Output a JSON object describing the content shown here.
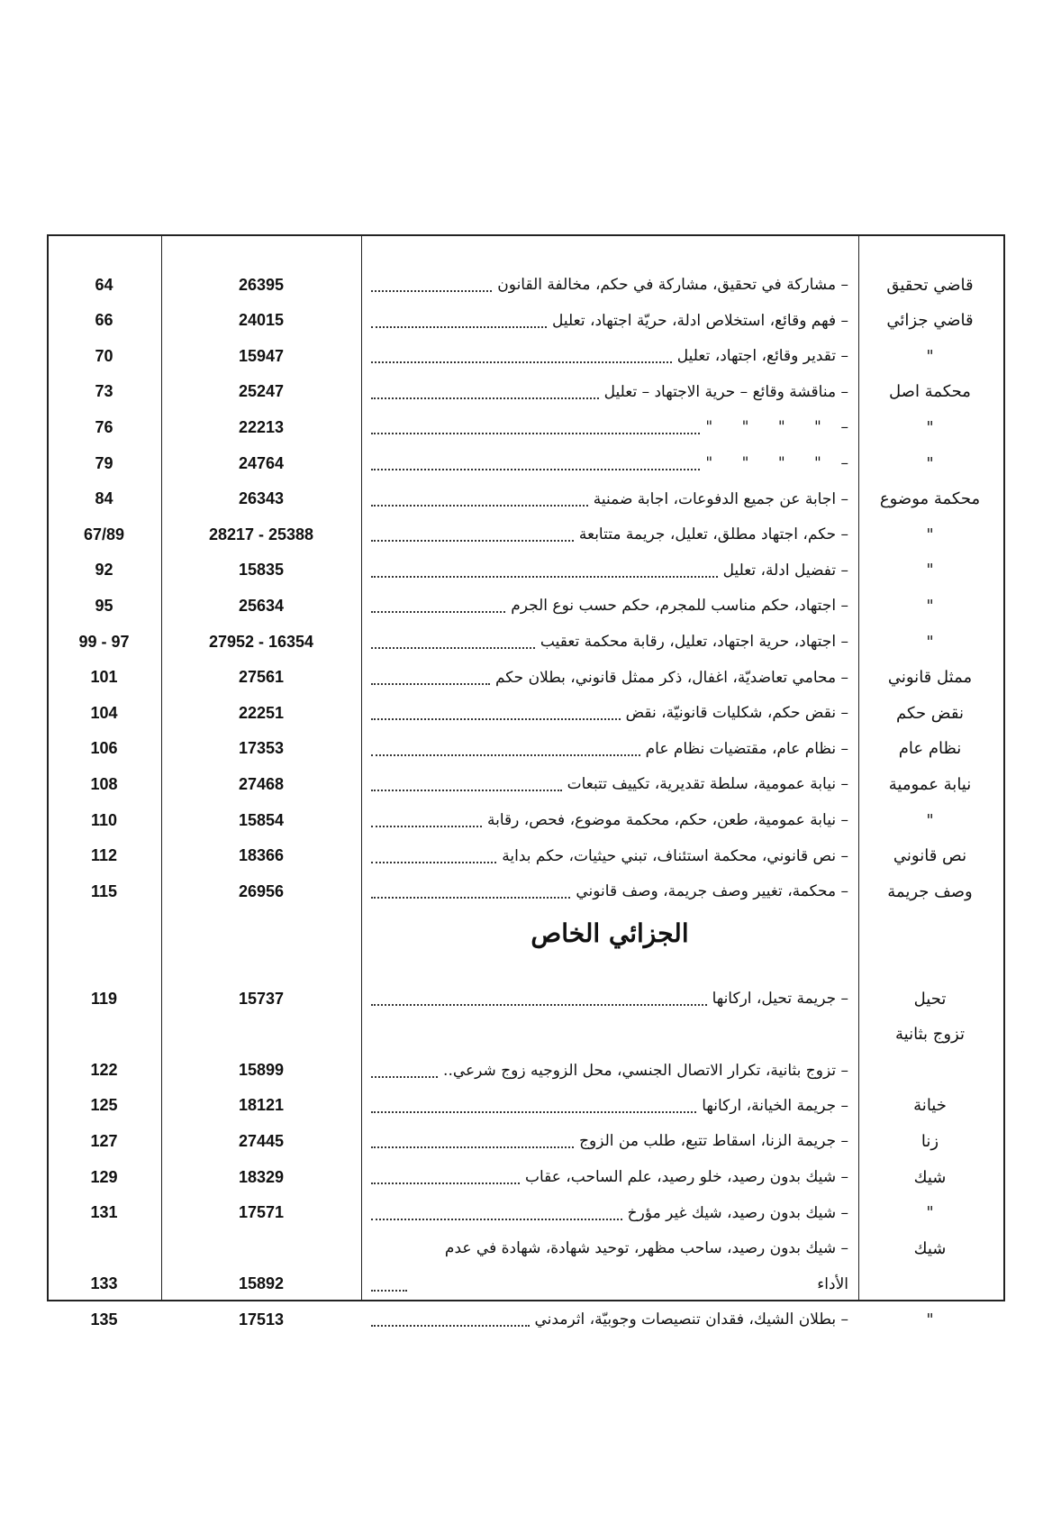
{
  "table": {
    "rows_a": [
      {
        "keyword": "قاضي تحقيق",
        "description": "– مشاركة في تحقيق، مشاركة في حكم، مخالفة القانون",
        "number": 26395,
        "page": 64
      },
      {
        "keyword": "قاضي جزائي",
        "description": "– فهم وقائع، استخلاص ادلة، حريّة اجتهاد، تعليل",
        "number": 24015,
        "page": 66
      },
      {
        "keyword": "\"",
        "description": "– تقدير وقائع، اجتهاد، تعليل",
        "number": 15947,
        "page": 70
      },
      {
        "keyword": "محكمة اصل",
        "description": "– مناقشة وقائع – حرية الاجتهاد – تعليل",
        "number": 25247,
        "page": 73
      },
      {
        "keyword": "\"",
        "description": "–    \"      \"      \"      \"",
        "number": 22213,
        "page": 76
      },
      {
        "keyword": "\"",
        "description": "–    \"      \"      \"      \"",
        "number": 24764,
        "page": 79
      },
      {
        "keyword": "محكمة موضوع",
        "description": "– اجابة عن جميع الدفوعات، اجابة ضمنية",
        "number": 26343,
        "page": 84
      },
      {
        "keyword": "\"",
        "description": "– حكم، اجتهاد مطلق، تعليل، جريمة متتابعة",
        "number": "28217 - 25388",
        "page": "67/89"
      },
      {
        "keyword": "\"",
        "description": "– تفضيل ادلة، تعليل",
        "number": 15835,
        "page": 92
      },
      {
        "keyword": "\"",
        "description": "– اجتهاد، حكم مناسب للمجرم، حكم حسب نوع الجرم",
        "number": 25634,
        "page": 95
      },
      {
        "keyword": "\"",
        "description": "– اجتهاد، حرية اجتهاد، تعليل، رقابة محكمة تعقيب",
        "number": "27952 - 16354",
        "page": "99 - 97"
      },
      {
        "keyword": "ممثل قانوني",
        "description": "– محامي تعاضديّة، اغفال، ذكر ممثل قانوني، بطلان حكم",
        "number": 27561,
        "page": 101
      },
      {
        "keyword": "نقض حكم",
        "description": "– نقض حكم، شكليات قانونيّة، نقض",
        "number": 22251,
        "page": 104
      },
      {
        "keyword": "نظام عام",
        "description": "– نظام عام، مقتضيات نظام عام",
        "number": 17353,
        "page": 106
      },
      {
        "keyword": "نيابة عمومية",
        "description": "– نيابة عمومية، سلطة تقديرية، تكييف تتبعات",
        "number": 27468,
        "page": 108
      },
      {
        "keyword": "\"",
        "description": "– نيابة عمومية، طعن، حكم، محكمة موضوع، فحص، رقابة",
        "number": 15854,
        "page": 110
      },
      {
        "keyword": "نص قانوني",
        "description": "– نص قانوني، محكمة استئناف، تبني حيثيات، حكم بداية",
        "number": 18366,
        "page": 112
      },
      {
        "keyword": "وصف جريمة",
        "description": "– محكمة، تغيير وصف جريمة، وصف قانوني",
        "number": 26956,
        "page": 115
      }
    ],
    "section_title": "الجزائي الخاص",
    "rows_b": [
      {
        "keyword": "تحيل",
        "description": "– جريمة تحيل، اركانها",
        "number": 15737,
        "page": 119
      },
      {
        "keyword": "تزوج بثانية",
        "description": "– تزوج بثانية، تكرار الاتصال الجنسي، محل الزوجيه زوج شرعي..",
        "number": 15899,
        "page": 122
      },
      {
        "keyword": "خيانة",
        "description": "– جريمة الخيانة، اركانها",
        "number": 18121,
        "page": 125
      },
      {
        "keyword": "زنا",
        "description": "– جريمة الزنا، اسقاط تتبع، طلب من الزوج",
        "number": 27445,
        "page": 127
      },
      {
        "keyword": "شيك",
        "description": "– شيك بدون رصيد، خلو رصيد، علم الساحب، عقاب",
        "number": 18329,
        "page": 129
      },
      {
        "keyword": "\"",
        "description": "– شيك بدون رصيد، شيك غير مؤرخ",
        "number": 17571,
        "page": 131
      },
      {
        "keyword": "شيك",
        "description": "– شيك بدون رصيد، ساحب مظهر، توحيد شهادة، شهادة في عدم الأداء",
        "number": 15892,
        "page": 133
      },
      {
        "keyword": "\"",
        "description": "– بطلان الشيك، فقدان تنصيصات وجوبيّة، اثرمدني",
        "number": 17513,
        "page": 135
      }
    ]
  }
}
